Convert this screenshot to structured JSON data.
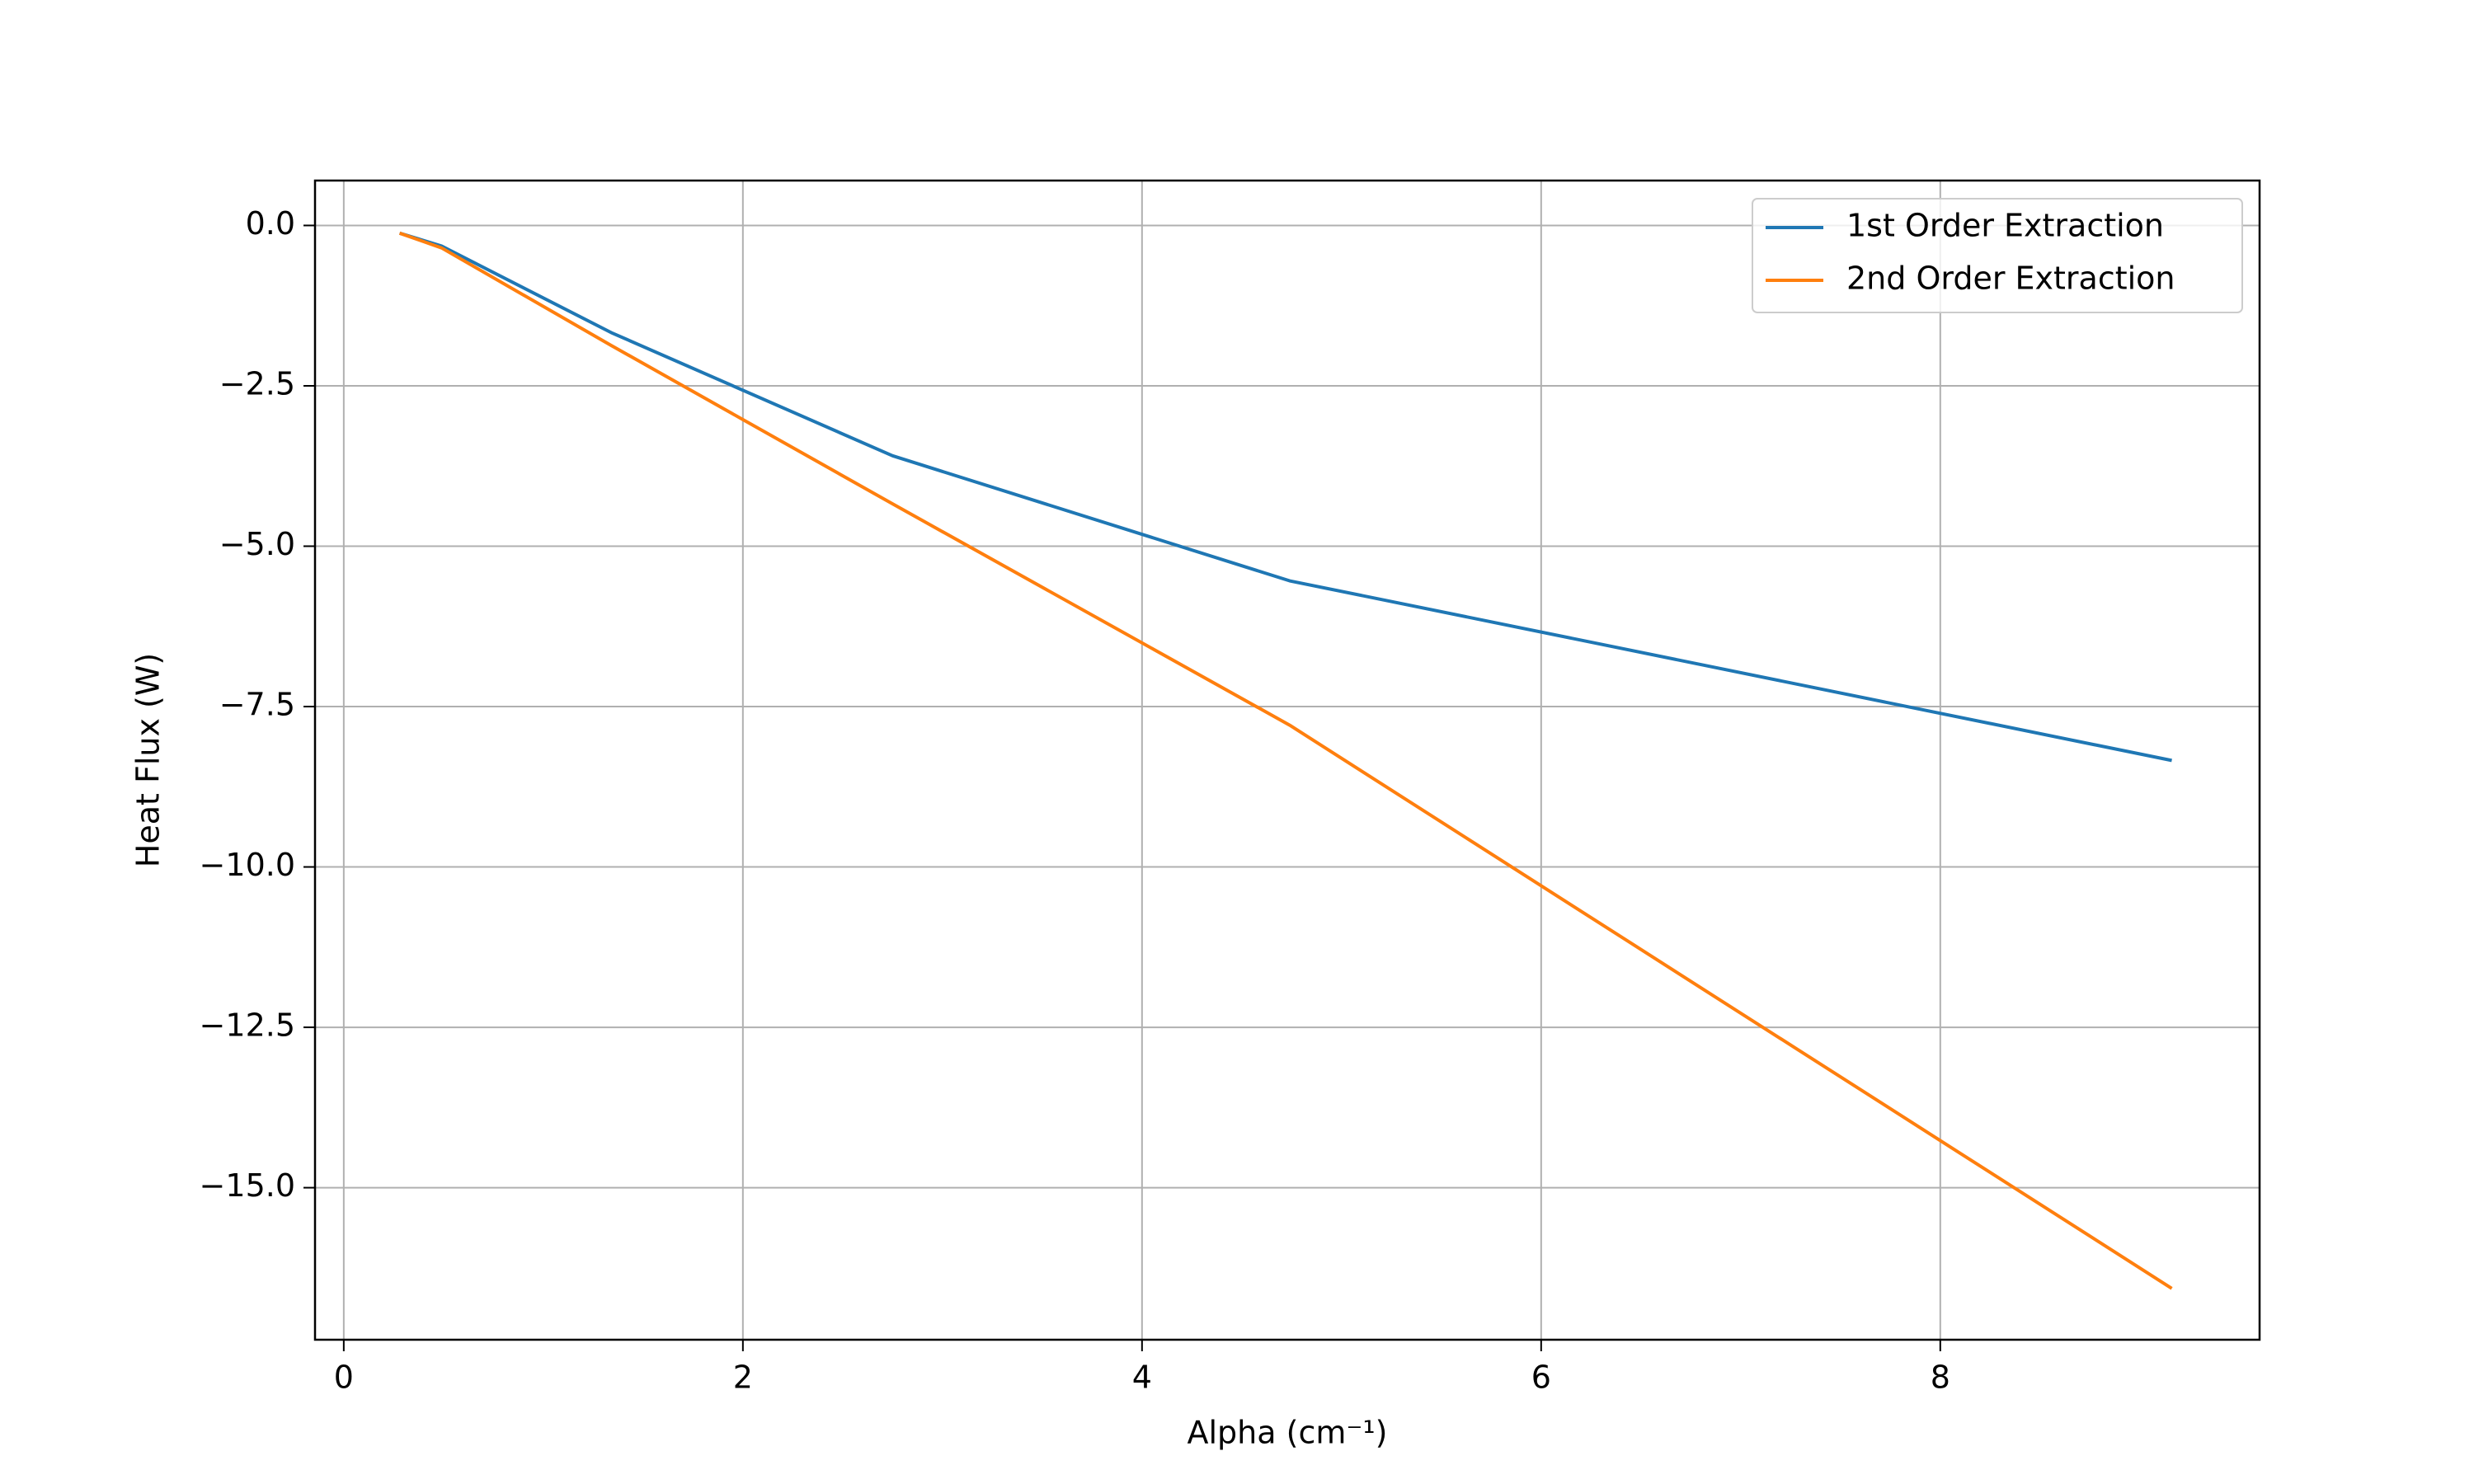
{
  "chart_data": {
    "type": "line",
    "xlabel": "Alpha (cm⁻¹)",
    "ylabel": "Heat Flux (W)",
    "x": [
      0.28,
      0.49,
      1.34,
      2.75,
      4.74,
      9.16
    ],
    "series": [
      {
        "name": "1st Order Extraction",
        "color": "#1f77b4",
        "values": [
          -0.12,
          -0.32,
          -1.67,
          -3.59,
          -5.54,
          -8.34
        ]
      },
      {
        "name": "2nd Order Extraction",
        "color": "#ff7f0e",
        "values": [
          -0.12,
          -0.35,
          -1.87,
          -4.34,
          -7.79,
          -16.57
        ]
      }
    ],
    "xlim": [
      -0.144,
      9.6
    ],
    "xticks": [
      0,
      2,
      4,
      6,
      8
    ],
    "ylim": [
      -17.37,
      0.7
    ],
    "yticks": [
      {
        "value": 0,
        "label": "0.0"
      },
      {
        "value": -2.5,
        "label": "−2.5"
      },
      {
        "value": -5,
        "label": "−5.0"
      },
      {
        "value": -7.5,
        "label": "−7.5"
      },
      {
        "value": -10,
        "label": "−10.0"
      },
      {
        "value": -12.5,
        "label": "−12.5"
      },
      {
        "value": -15,
        "label": "−15.0"
      }
    ],
    "grid": true,
    "legend": "upper right"
  }
}
